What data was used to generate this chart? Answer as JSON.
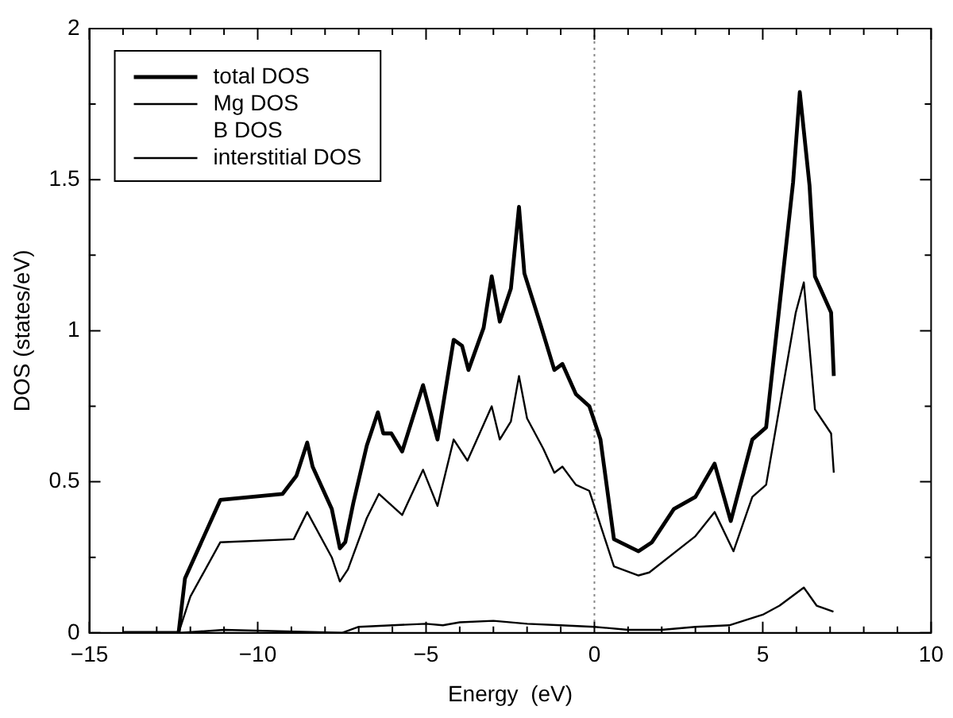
{
  "chart_data": {
    "type": "line",
    "xlabel": "Energy  (eV)",
    "ylabel": "DOS (states/eV)",
    "xlim": [
      -15,
      10
    ],
    "ylim": [
      0,
      2
    ],
    "xticks": [
      -15,
      {
        "value": -14,
        "label": null
      },
      {
        "value": -13,
        "label": null
      },
      {
        "value": -12,
        "label": null
      },
      {
        "value": -11,
        "label": null
      },
      -10,
      {
        "value": -9,
        "label": null
      },
      {
        "value": -8,
        "label": null
      },
      {
        "value": -7,
        "label": null
      },
      {
        "value": -6,
        "label": null
      },
      -5,
      {
        "value": -4,
        "label": null
      },
      {
        "value": -3,
        "label": null
      },
      {
        "value": -2,
        "label": null
      },
      {
        "value": -1,
        "label": null
      },
      0,
      {
        "value": 1,
        "label": null
      },
      {
        "value": 2,
        "label": null
      },
      {
        "value": 3,
        "label": null
      },
      {
        "value": 4,
        "label": null
      },
      5,
      {
        "value": 6,
        "label": null
      },
      {
        "value": 7,
        "label": null
      },
      {
        "value": 8,
        "label": null
      },
      {
        "value": 9,
        "label": null
      },
      10
    ],
    "yticks": [
      0,
      {
        "value": 0.25,
        "label": null
      },
      0.5,
      {
        "value": 0.75,
        "label": null
      },
      1,
      {
        "value": 1.25,
        "label": null
      },
      1.5,
      {
        "value": 1.75,
        "label": null
      },
      2
    ],
    "grid": false,
    "legend": "top left",
    "marker": "none",
    "line_style": "solid",
    "ref_lines": [
      {
        "axis": "x",
        "value": 0,
        "color": "#888888",
        "line_style": "dotted"
      }
    ],
    "series": [
      {
        "name": "total DOS",
        "color": "#000000",
        "x": [
          -14,
          -12.35,
          -12.16,
          -11.11,
          -9.26,
          -8.85,
          -8.53,
          -8.37,
          -7.8,
          -7.56,
          -7.4,
          -7.16,
          -6.76,
          -6.43,
          -6.27,
          -6.03,
          -5.71,
          -5.09,
          -4.66,
          -4.18,
          -3.93,
          -3.74,
          -3.29,
          -3.05,
          -2.81,
          -2.48,
          -2.24,
          -2.08,
          -1.6,
          -1.19,
          -0.95,
          -0.55,
          -0.15,
          0.18,
          0.58,
          1.31,
          1.71,
          2.36,
          3.0,
          3.57,
          4.05,
          4.69,
          5.1,
          5.9,
          6.1,
          6.39,
          6.55,
          7.03,
          7.11
        ],
        "values": [
          0,
          0,
          0.18,
          0.44,
          0.46,
          0.52,
          0.63,
          0.55,
          0.41,
          0.28,
          0.3,
          0.43,
          0.62,
          0.73,
          0.66,
          0.66,
          0.6,
          0.82,
          0.64,
          0.97,
          0.95,
          0.87,
          1.01,
          1.18,
          1.03,
          1.14,
          1.41,
          1.19,
          1.02,
          0.87,
          0.89,
          0.79,
          0.75,
          0.64,
          0.31,
          0.27,
          0.3,
          0.41,
          0.45,
          0.56,
          0.37,
          0.64,
          0.68,
          1.49,
          1.79,
          1.48,
          1.18,
          1.06,
          0.85
        ]
      },
      {
        "name": "Mg DOS",
        "color": "#000000",
        "x": [
          -14,
          -12.35,
          -12.0,
          -11.11,
          -8.93,
          -8.53,
          -7.8,
          -7.56,
          -7.32,
          -6.76,
          -6.4,
          -5.71,
          -5.09,
          -4.66,
          -4.18,
          -3.77,
          -3.05,
          -2.81,
          -2.48,
          -2.24,
          -2.0,
          -1.52,
          -1.19,
          -0.95,
          -0.55,
          -0.15,
          0.58,
          1.31,
          1.63,
          3.0,
          3.57,
          4.13,
          4.69,
          5.1,
          5.98,
          6.22,
          6.55,
          7.03,
          7.11
        ],
        "values": [
          0,
          0,
          0.12,
          0.3,
          0.31,
          0.4,
          0.25,
          0.17,
          0.21,
          0.38,
          0.46,
          0.39,
          0.54,
          0.42,
          0.64,
          0.57,
          0.75,
          0.64,
          0.7,
          0.85,
          0.71,
          0.61,
          0.53,
          0.55,
          0.49,
          0.47,
          0.22,
          0.19,
          0.2,
          0.32,
          0.4,
          0.27,
          0.45,
          0.49,
          1.06,
          1.16,
          0.74,
          0.66,
          0.53
        ]
      },
      {
        "name": "B DOS"
      },
      {
        "name": "interstitial DOS",
        "color": "#000000",
        "x": [
          -14,
          -12.3,
          -11,
          -7.5,
          -7,
          -5,
          -4.5,
          -4,
          -3,
          -2,
          -1,
          0,
          1,
          2,
          3,
          4,
          5,
          5.5,
          6.22,
          6.6,
          7.1
        ],
        "values": [
          0,
          0,
          0.01,
          0,
          0.02,
          0.03,
          0.025,
          0.035,
          0.04,
          0.03,
          0.025,
          0.02,
          0.01,
          0.01,
          0.02,
          0.025,
          0.06,
          0.09,
          0.15,
          0.09,
          0.07
        ]
      }
    ]
  }
}
